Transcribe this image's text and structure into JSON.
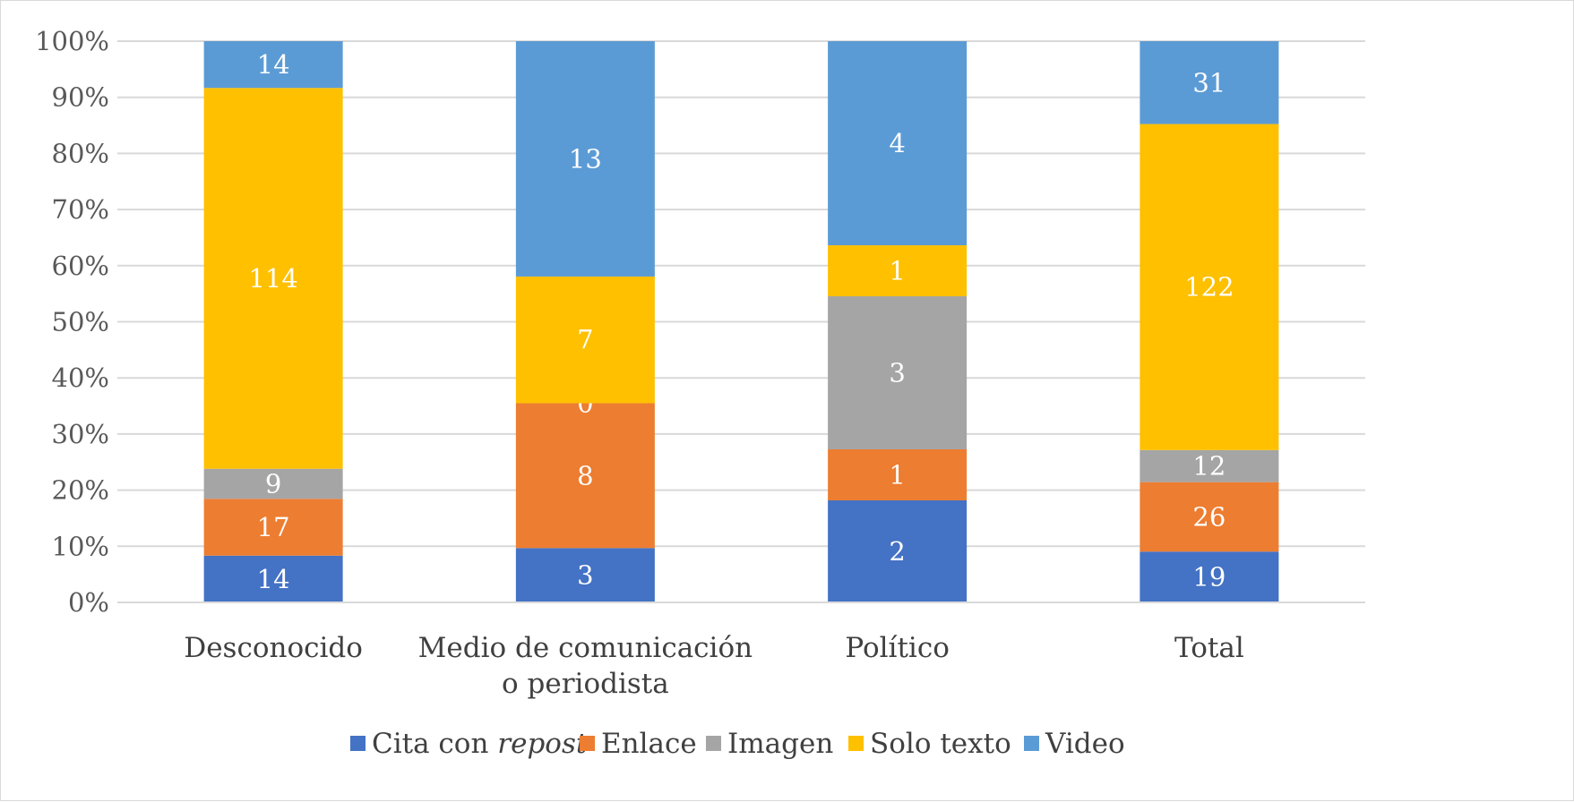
{
  "chart_data": {
    "type": "bar",
    "stacked": "percent",
    "title": "",
    "xlabel": "",
    "ylabel": "",
    "ylim": [
      0,
      100
    ],
    "yticks": [
      "0%",
      "10%",
      "20%",
      "30%",
      "40%",
      "50%",
      "60%",
      "70%",
      "80%",
      "90%",
      "100%"
    ],
    "grid": true,
    "legend": "bottom",
    "categories": [
      [
        "Desconocido"
      ],
      [
        "Medio de comunicación",
        "o periodista"
      ],
      [
        "Político"
      ],
      [
        "Total"
      ]
    ],
    "series": [
      {
        "name": "Cita con ",
        "name_italic": "repost",
        "color": "#4472C4",
        "values": [
          14,
          3,
          2,
          19
        ]
      },
      {
        "name": "Enlace",
        "color": "#ED7D31",
        "values": [
          17,
          8,
          1,
          26
        ]
      },
      {
        "name": "Imagen",
        "color": "#A5A5A5",
        "values": [
          9,
          0,
          3,
          12
        ]
      },
      {
        "name": "Solo texto",
        "color": "#FFC000",
        "values": [
          114,
          7,
          1,
          122
        ]
      },
      {
        "name": "Video",
        "color": "#5B9BD5",
        "values": [
          14,
          13,
          4,
          31
        ]
      }
    ]
  }
}
